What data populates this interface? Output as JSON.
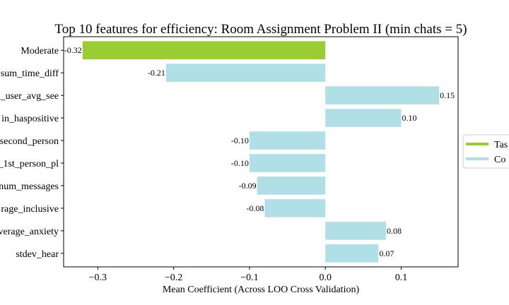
{
  "chart_data": {
    "type": "bar",
    "orientation": "horizontal",
    "title": "Top 10 features for efficiency: Room Assignment Problem II (min chats = 5)",
    "xlabel": "Mean Coefficient (Across LOO Cross Validation)",
    "ylabel": "",
    "xlim": [
      -0.345,
      0.175
    ],
    "xticks": [
      -0.3,
      -0.2,
      -0.1,
      0.0,
      0.1
    ],
    "xtick_labels": [
      "−0.3",
      "−0.2",
      "−0.1",
      "0.0",
      "0.1"
    ],
    "grid": false,
    "legend_position": "right",
    "categories": [
      "Moderate",
      "sum_time_diff",
      "_user_avg_see",
      "in_haspositive",
      "second_person",
      "_1st_person_pl",
      "num_messages",
      "rage_inclusive",
      "verage_anxiety",
      "stdev_hear"
    ],
    "values": [
      -0.32,
      -0.21,
      0.15,
      0.1,
      -0.1,
      -0.1,
      -0.09,
      -0.08,
      0.08,
      0.07
    ],
    "value_labels": [
      "-0.32",
      "-0.21",
      "0.15",
      "0.10",
      "-0.10",
      "-0.10",
      "-0.09",
      "-0.08",
      "0.08",
      "0.07"
    ],
    "bar_group": [
      "Tas",
      "Co",
      "Co",
      "Co",
      "Co",
      "Co",
      "Co",
      "Co",
      "Co",
      "Co"
    ],
    "legend": [
      {
        "label": "Tas",
        "color": "#9acd32"
      },
      {
        "label": "Co",
        "color": "#b0e0e6"
      }
    ]
  }
}
